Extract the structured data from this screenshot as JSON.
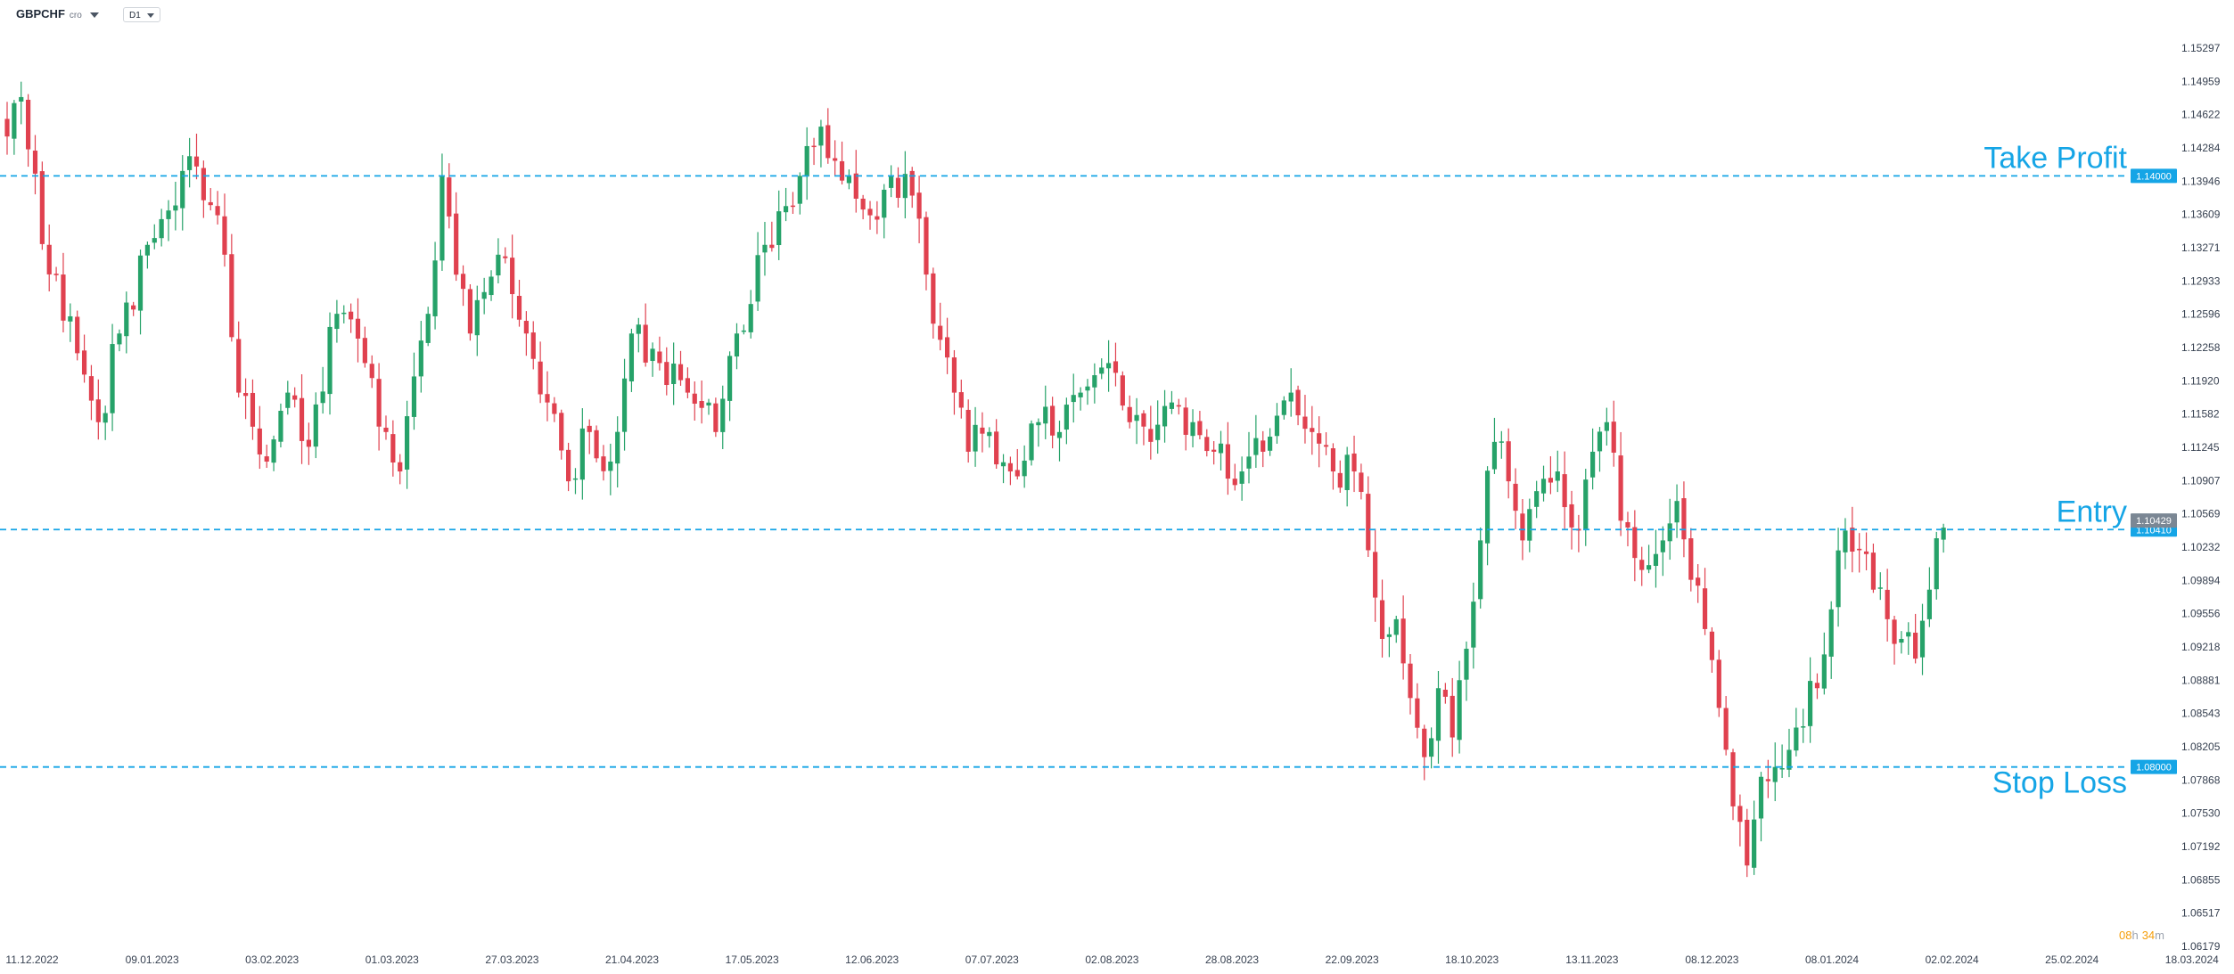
{
  "toolbar": {
    "symbol": "GBPCHF",
    "symbol_suffix": "cro",
    "timeframe": "D1"
  },
  "countdown": {
    "hours": "08",
    "hours_unit": "h",
    "minutes": "34",
    "minutes_unit": "m"
  },
  "colors": {
    "up": "#26a269",
    "down": "#e0414f",
    "level": "#15a5e6",
    "axis_text": "#374151",
    "price_badge": "#7b8794",
    "countdown": "#f59e0b"
  },
  "chart_data": {
    "type": "candlestick",
    "symbol": "GBPCHF",
    "timeframe": "D1",
    "ylim": [
      1.06179,
      1.15297
    ],
    "y_ticks": [
      "1.15297",
      "1.14959",
      "1.14622",
      "1.14284",
      "1.13946",
      "1.13609",
      "1.13271",
      "1.12933",
      "1.12596",
      "1.12258",
      "1.11920",
      "1.11582",
      "1.11245",
      "1.10907",
      "1.10569",
      "1.10232",
      "1.09894",
      "1.09556",
      "1.09218",
      "1.08881",
      "1.08543",
      "1.08205",
      "1.07868",
      "1.07530",
      "1.07192",
      "1.06855",
      "1.06517",
      "1.06179"
    ],
    "x_ticks": [
      "11.12.2022",
      "09.01.2023",
      "03.02.2023",
      "01.03.2023",
      "27.03.2023",
      "21.04.2023",
      "17.05.2023",
      "12.06.2023",
      "07.07.2023",
      "02.08.2023",
      "28.08.2023",
      "22.09.2023",
      "18.10.2023",
      "13.11.2023",
      "08.12.2023",
      "08.01.2024",
      "02.02.2024",
      "25.02.2024",
      "18.03.2024"
    ],
    "levels": [
      {
        "label": "Take Profit",
        "price": 1.14,
        "price_label": "1.14000"
      },
      {
        "label": "Entry",
        "price": 1.1041,
        "price_label": "1.10410"
      },
      {
        "label": "Stop Loss",
        "price": 1.08,
        "price_label": "1.08000"
      }
    ],
    "current_price": 1.10429,
    "current_price_label": "1.10429",
    "anchors": [
      [
        0,
        1.144
      ],
      [
        2,
        1.148
      ],
      [
        6,
        1.13
      ],
      [
        10,
        1.122
      ],
      [
        13,
        1.115
      ],
      [
        16,
        1.124
      ],
      [
        20,
        1.133
      ],
      [
        24,
        1.137
      ],
      [
        26,
        1.142
      ],
      [
        31,
        1.132
      ],
      [
        33,
        1.118
      ],
      [
        37,
        1.111
      ],
      [
        40,
        1.118
      ],
      [
        43,
        1.1125
      ],
      [
        47,
        1.126
      ],
      [
        51,
        1.121
      ],
      [
        54,
        1.114
      ],
      [
        56,
        1.11
      ],
      [
        60,
        1.126
      ],
      [
        62,
        1.14
      ],
      [
        66,
        1.124
      ],
      [
        70,
        1.132
      ],
      [
        72,
        1.128
      ],
      [
        74,
        1.124
      ],
      [
        77,
        1.117
      ],
      [
        80,
        1.109
      ],
      [
        83,
        1.114
      ],
      [
        86,
        1.111
      ],
      [
        89,
        1.124
      ],
      [
        93,
        1.121
      ],
      [
        97,
        1.118
      ],
      [
        101,
        1.114
      ],
      [
        104,
        1.124
      ],
      [
        108,
        1.133
      ],
      [
        113,
        1.14
      ],
      [
        116,
        1.145
      ],
      [
        120,
        1.14
      ],
      [
        123,
        1.136
      ],
      [
        126,
        1.14
      ],
      [
        129,
        1.138
      ],
      [
        132,
        1.125
      ],
      [
        135,
        1.118
      ],
      [
        137,
        1.112
      ],
      [
        140,
        1.114
      ],
      [
        143,
        1.11
      ],
      [
        147,
        1.115
      ],
      [
        150,
        1.114
      ],
      [
        153,
        1.118
      ],
      [
        157,
        1.121
      ],
      [
        160,
        1.115
      ],
      [
        163,
        1.113
      ],
      [
        166,
        1.117
      ],
      [
        169,
        1.115
      ],
      [
        172,
        1.112
      ],
      [
        176,
        1.11
      ],
      [
        179,
        1.112
      ],
      [
        183,
        1.118
      ],
      [
        186,
        1.114
      ],
      [
        189,
        1.11
      ],
      [
        192,
        1.11
      ],
      [
        194,
        1.102
      ],
      [
        196,
        1.093
      ],
      [
        198,
        1.095
      ],
      [
        200,
        1.087
      ],
      [
        202,
        1.081
      ],
      [
        204,
        1.088
      ],
      [
        206,
        1.083
      ],
      [
        208,
        1.092
      ],
      [
        210,
        1.103
      ],
      [
        212,
        1.113
      ],
      [
        214,
        1.109
      ],
      [
        216,
        1.103
      ],
      [
        218,
        1.108
      ],
      [
        221,
        1.11
      ],
      [
        224,
        1.104
      ],
      [
        226,
        1.112
      ],
      [
        228,
        1.115
      ],
      [
        230,
        1.105
      ],
      [
        233,
        1.1
      ],
      [
        236,
        1.103
      ],
      [
        238,
        1.107
      ],
      [
        240,
        1.099
      ],
      [
        242,
        1.094
      ],
      [
        244,
        1.086
      ],
      [
        246,
        1.076
      ],
      [
        248,
        1.07
      ],
      [
        250,
        1.079
      ],
      [
        252,
        1.08
      ],
      [
        255,
        1.084
      ],
      [
        258,
        1.088
      ],
      [
        260,
        1.096
      ],
      [
        262,
        1.104
      ],
      [
        264,
        1.102
      ],
      [
        266,
        1.098
      ],
      [
        268,
        1.095
      ],
      [
        270,
        1.093
      ],
      [
        272,
        1.091
      ],
      [
        274,
        1.098
      ],
      [
        276,
        1.1043
      ]
    ]
  }
}
